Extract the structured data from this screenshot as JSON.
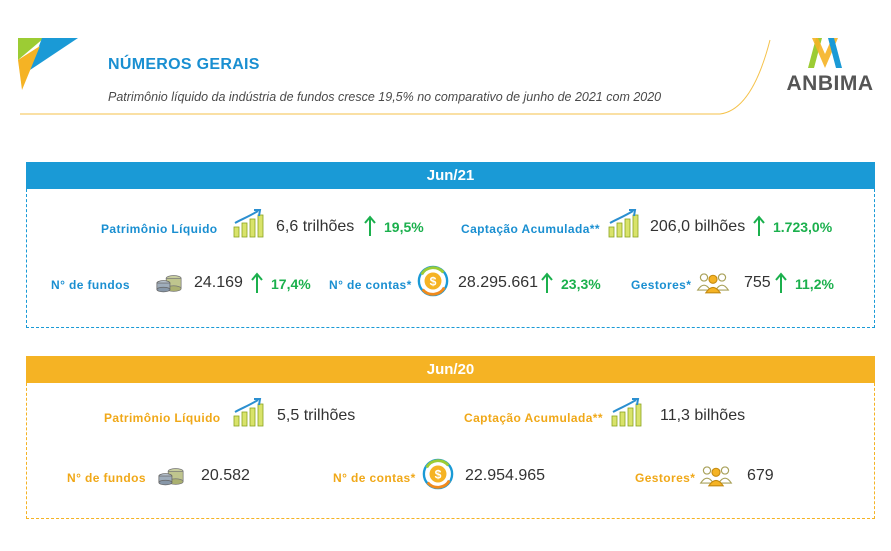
{
  "header": {
    "title": "NÚMEROS GERAIS",
    "subtitle": "Patrimônio líquido da indústria de fundos cresce 19,5% no comparativo de junho de 2021 com 2020"
  },
  "brand": {
    "name": "ANBIMA"
  },
  "colors": {
    "blue": "#1a9ad6",
    "orange": "#f5b324",
    "green": "#1bb04d"
  },
  "panels": {
    "jun21": {
      "label": "Jun/21",
      "pl_label": "Patrimônio Líquido",
      "pl_value": "6,6 trilhões",
      "pl_change": "19,5%",
      "captacao_label": "Captação Acumulada**",
      "captacao_value": "206,0 bilhões",
      "captacao_change": "1.723,0%",
      "fundos_label": "N° de fundos",
      "fundos_value": "24.169",
      "fundos_change": "17,4%",
      "contas_label": "N° de contas*",
      "contas_value": "28.295.661",
      "contas_change": "23,3%",
      "gestores_label": "Gestores*",
      "gestores_value": "755",
      "gestores_change": "11,2%"
    },
    "jun20": {
      "label": "Jun/20",
      "pl_label": "Patrimônio Líquido",
      "pl_value": "5,5 trilhões",
      "captacao_label": "Captação Acumulada**",
      "captacao_value": "11,3 bilhões",
      "fundos_label": "N° de fundos",
      "fundos_value": "20.582",
      "contas_label": "N° de contas*",
      "contas_value": "22.954.965",
      "gestores_label": "Gestores*",
      "gestores_value": "679"
    }
  },
  "icons": [
    "growth-chart-icon",
    "coins-icon",
    "money-cycle-icon",
    "people-group-icon",
    "up-arrow-icon"
  ]
}
